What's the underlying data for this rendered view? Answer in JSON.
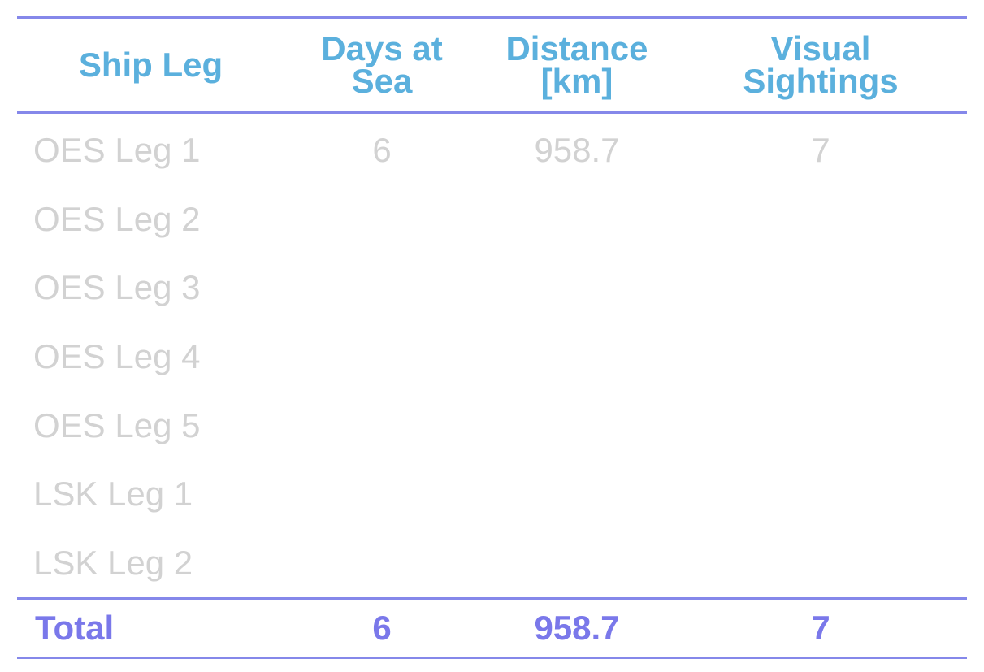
{
  "table": {
    "headers": [
      "Ship Leg",
      "Days at\nSea",
      "Distance\n[km]",
      "Visual\nSightings"
    ],
    "rows": [
      [
        "OES Leg 1",
        "6",
        "958.7",
        "7"
      ],
      [
        "OES Leg 2",
        "",
        "",
        ""
      ],
      [
        "OES Leg 3",
        "",
        "",
        ""
      ],
      [
        "OES Leg 4",
        "",
        "",
        ""
      ],
      [
        "OES Leg 5",
        "",
        "",
        ""
      ],
      [
        "LSK Leg 1",
        "",
        "",
        ""
      ],
      [
        "LSK Leg 2",
        "",
        "",
        ""
      ]
    ],
    "total": [
      "Total",
      "6",
      "958.7",
      "7"
    ]
  },
  "colors": {
    "header_text": "#5bb0dd",
    "rule": "#8588ea",
    "row_text": "#d2d2d2",
    "total_text": "#7a78ea"
  }
}
